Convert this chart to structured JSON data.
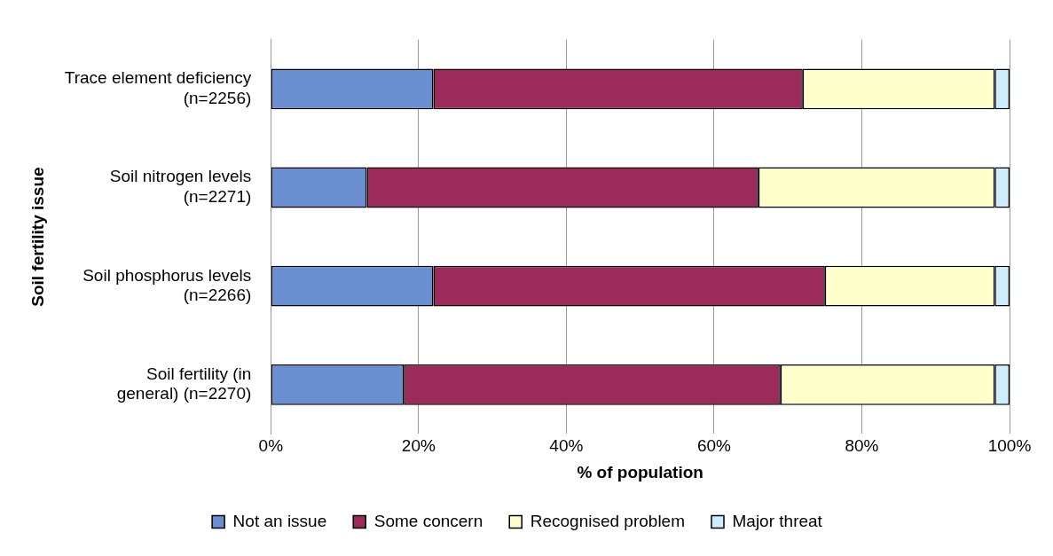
{
  "chart_data": {
    "type": "bar",
    "orientation": "horizontal",
    "stacked": true,
    "xlabel": "% of population",
    "ylabel": "Soil fertility issue",
    "categories": [
      "Trace element deficiency (n=2256)",
      "Soil nitrogen levels (n=2271)",
      "Soil phosphorus levels (n=2266)",
      "Soil fertility (in general) (n=2270)"
    ],
    "series": [
      {
        "name": "Not an issue",
        "color": "#6a8fd0",
        "values": [
          22,
          13,
          22,
          18
        ]
      },
      {
        "name": "Some concern",
        "color": "#9c2a5a",
        "values": [
          50,
          53,
          53,
          51
        ]
      },
      {
        "name": "Recognised problem",
        "color": "#ffffcc",
        "values": [
          26,
          32,
          23,
          29
        ]
      },
      {
        "name": "Major threat",
        "color": "#cceeff",
        "values": [
          2,
          2,
          2,
          2
        ]
      }
    ],
    "xlim": [
      0,
      100
    ],
    "xticks": [
      {
        "value": 0,
        "label": "0%"
      },
      {
        "value": 20,
        "label": "20%"
      },
      {
        "value": 40,
        "label": "40%"
      },
      {
        "value": 60,
        "label": "60%"
      },
      {
        "value": 80,
        "label": "80%"
      },
      {
        "value": 100,
        "label": "100%"
      }
    ],
    "grid": "x",
    "legend": "bottom"
  }
}
